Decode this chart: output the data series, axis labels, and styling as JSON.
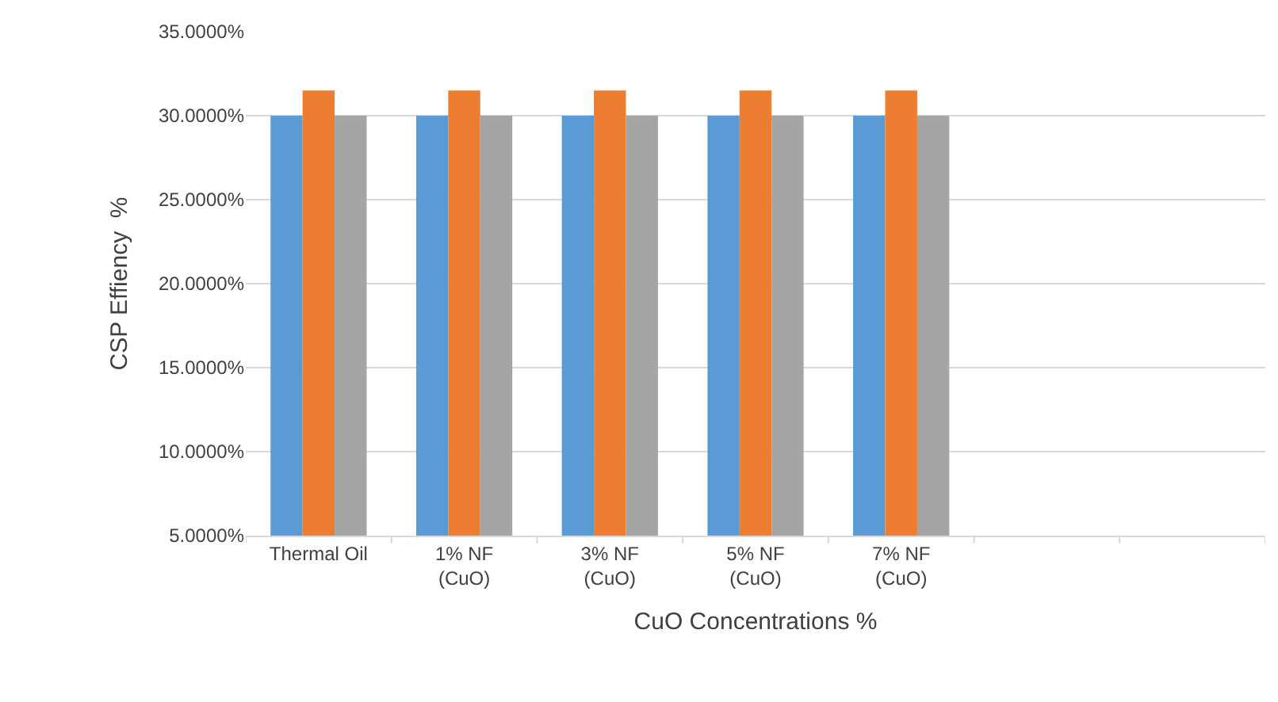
{
  "chart_data": {
    "type": "bar",
    "xlabel": "CuO Concentrations %",
    "ylabel": "CSP Effiency  %",
    "categories": [
      "Thermal Oil",
      "1% NF\n(CuO)",
      "3% NF\n(CuO)",
      "5% NF\n(CuO)",
      "7% NF\n(CuO)",
      null,
      null
    ],
    "series": [
      {
        "color": "#5b9bd5",
        "values": [
          30,
          30,
          30,
          30,
          30,
          null,
          null
        ]
      },
      {
        "color": "#ed7d31",
        "values": [
          31.5,
          31.5,
          31.5,
          31.5,
          31.5,
          null,
          null
        ]
      },
      {
        "color": "#a5a5a5",
        "values": [
          30,
          30,
          30,
          30,
          30,
          null,
          null
        ]
      }
    ],
    "ylim": [
      5,
      35
    ],
    "yticks": [
      {
        "value": 5,
        "label": "5.0000%"
      },
      {
        "value": 10,
        "label": "10.0000%"
      },
      {
        "value": 15,
        "label": "15.0000%"
      },
      {
        "value": 20,
        "label": "20.0000%"
      },
      {
        "value": 25,
        "label": "25.0000%"
      },
      {
        "value": 30,
        "label": "30.0000%"
      },
      {
        "value": 35,
        "label": "35.0000%"
      }
    ],
    "grid": "y"
  }
}
